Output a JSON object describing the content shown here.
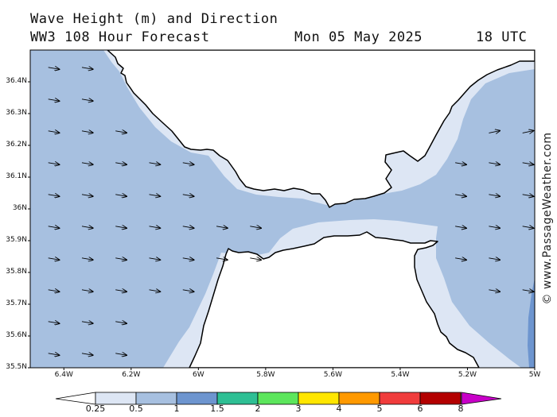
{
  "title": {
    "line1": "Wave Height (m) and Direction",
    "model": "WW3 108 Hour Forecast",
    "date": "Mon 05 May 2025",
    "time": "18 UTC"
  },
  "watermark": "© www.PassageWeather.com",
  "latitude_labels": [
    "36.4N",
    "36.3N",
    "36.2N",
    "36.1N",
    "36N",
    "35.9N",
    "35.8N",
    "35.7N",
    "35.6N",
    "35.5N"
  ],
  "longitude_labels": [
    "6.4W",
    "6.2W",
    "6W",
    "5.8W",
    "5.6W",
    "5.4W",
    "5.2W",
    "5W"
  ],
  "colorbar": {
    "labels": [
      "0.25",
      "0.5",
      "1",
      "1.5",
      "2",
      "3",
      "4",
      "5",
      "6",
      "8"
    ],
    "colors": [
      "#dde6f4",
      "#a7c0e0",
      "#6d95cf",
      "#2ebf94",
      "#5ce65c",
      "#ffe600",
      "#ff9900",
      "#f03c3c",
      "#b30000",
      "#c800c8"
    ]
  },
  "colors": {
    "land": "#ffffff",
    "sea_low": "#dde6f4",
    "sea_mid": "#a7c0e0",
    "sea_high": "#6d95cf",
    "coast": "#000000"
  },
  "arrows": {
    "direction_deg": 100,
    "columns_lon": [
      -6.43,
      -6.33,
      -6.23,
      -6.13,
      -6.03,
      -5.93,
      -5.83,
      -5.22,
      -5.12,
      -5.02
    ]
  }
}
